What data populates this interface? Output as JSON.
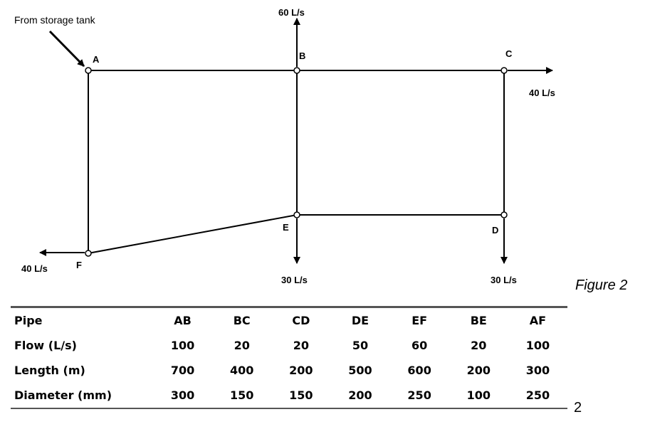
{
  "diagram": {
    "source_label": "From storage tank",
    "nodes": [
      {
        "id": "A",
        "label": "A"
      },
      {
        "id": "B",
        "label": "B"
      },
      {
        "id": "C",
        "label": "C"
      },
      {
        "id": "D",
        "label": "D"
      },
      {
        "id": "E",
        "label": "E"
      },
      {
        "id": "F",
        "label": "F"
      }
    ],
    "pipes": [
      {
        "from": "A",
        "to": "B"
      },
      {
        "from": "B",
        "to": "C"
      },
      {
        "from": "C",
        "to": "D"
      },
      {
        "from": "D",
        "to": "E"
      },
      {
        "from": "E",
        "to": "F"
      },
      {
        "from": "B",
        "to": "E"
      },
      {
        "from": "A",
        "to": "F"
      }
    ],
    "outflows": [
      {
        "node": "B",
        "label": "60 L/s",
        "direction": "up"
      },
      {
        "node": "C",
        "label": "40 L/s",
        "direction": "right"
      },
      {
        "node": "E",
        "label": "30 L/s",
        "direction": "down"
      },
      {
        "node": "D",
        "label": "30 L/s",
        "direction": "down"
      },
      {
        "node": "F",
        "label": "40 L/s",
        "direction": "left"
      }
    ]
  },
  "figure_caption": "Figure 2",
  "side_number": "2",
  "table": {
    "header": [
      "Pipe",
      "AB",
      "BC",
      "CD",
      "DE",
      "EF",
      "BE",
      "AF"
    ],
    "rows": [
      [
        "Flow (L/s)",
        "100",
        "20",
        "20",
        "50",
        "60",
        "20",
        "100"
      ],
      [
        "Length (m)",
        "700",
        "400",
        "200",
        "500",
        "600",
        "200",
        "300"
      ],
      [
        "Diameter (mm)",
        "300",
        "150",
        "150",
        "200",
        "250",
        "100",
        "250"
      ]
    ]
  }
}
